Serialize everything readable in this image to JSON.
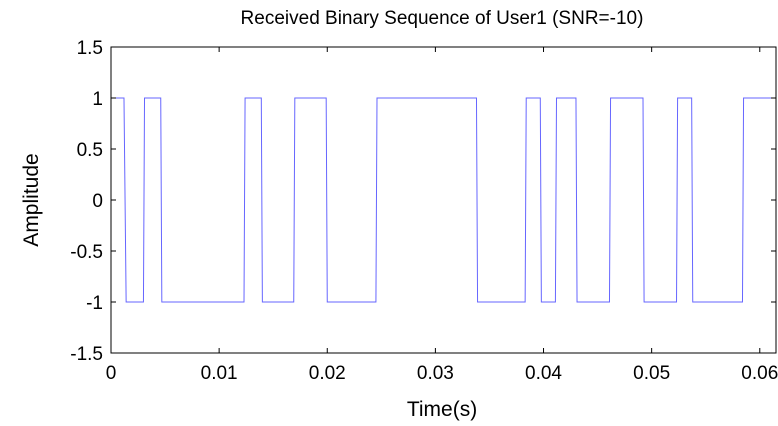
{
  "chart_data": {
    "type": "line",
    "title": "Received Binary Sequence of User1 (SNR=-10)",
    "xlabel": "Time(s)",
    "ylabel": "Amplitude",
    "xlim": [
      0,
      0.0615
    ],
    "ylim": [
      -1.5,
      1.5
    ],
    "xticks": [
      "0",
      "0.01",
      "0.02",
      "0.03",
      "0.04",
      "0.05",
      "0.06"
    ],
    "xtick_values": [
      0,
      0.01,
      0.02,
      0.03,
      0.04,
      0.05,
      0.06
    ],
    "yticks": [
      "1.5",
      "1",
      "0.5",
      "0",
      "-0.5",
      "-1",
      "-1.5"
    ],
    "ytick_values": [
      1.5,
      1,
      0.5,
      0,
      -0.5,
      -1,
      -1.5
    ],
    "grid": false,
    "series": [
      {
        "color": "#6666ff",
        "x": [
          0,
          0.0012,
          0.0014,
          0.003,
          0.0031,
          0.0046,
          0.0047,
          0.0123,
          0.0124,
          0.0139,
          0.014,
          0.0169,
          0.017,
          0.0199,
          0.02,
          0.0245,
          0.0246,
          0.0338,
          0.0339,
          0.0383,
          0.0384,
          0.0397,
          0.0398,
          0.0411,
          0.0412,
          0.043,
          0.0431,
          0.0461,
          0.0462,
          0.0492,
          0.0493,
          0.0523,
          0.0524,
          0.0537,
          0.0538,
          0.0584,
          0.0585,
          0.0615
        ],
        "y": [
          1,
          1,
          -1,
          -1,
          1,
          1,
          -1,
          -1,
          1,
          1,
          -1,
          -1,
          1,
          1,
          -1,
          -1,
          1,
          1,
          -1,
          -1,
          1,
          1,
          -1,
          -1,
          1,
          1,
          -1,
          -1,
          1,
          1,
          -1,
          -1,
          1,
          1,
          -1,
          -1,
          1,
          1
        ]
      }
    ]
  }
}
